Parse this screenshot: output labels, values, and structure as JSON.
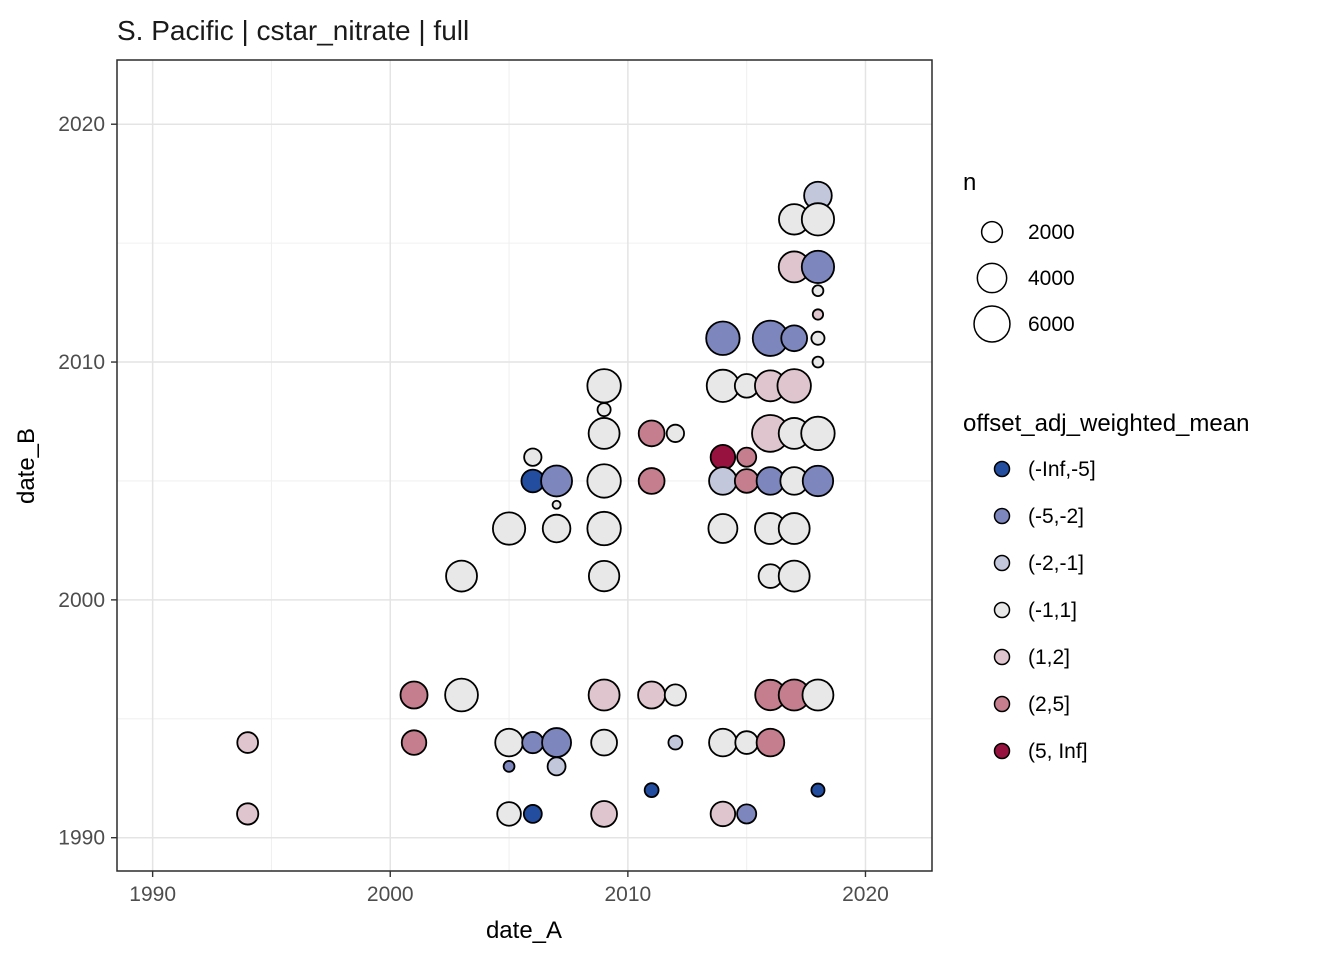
{
  "chart_data": {
    "type": "scatter",
    "title": "S. Pacific | cstar_nitrate | full",
    "xlabel": "date_A",
    "ylabel": "date_B",
    "xlim": [
      1988.5,
      2022.8
    ],
    "ylim": [
      1988.6,
      2022.7
    ],
    "x_ticks": [
      "1990",
      "2000",
      "2010",
      "2020"
    ],
    "y_ticks": [
      "1990",
      "2000",
      "2010",
      "2020"
    ],
    "x_tick_values": [
      1990,
      2000,
      2010,
      2020
    ],
    "y_tick_values": [
      1990,
      2000,
      2010,
      2020
    ],
    "x_minor": [
      1995,
      2005,
      2015
    ],
    "y_minor": [
      1995,
      2005,
      2015
    ],
    "grid": true,
    "panel_border_color": "#2b2b2b",
    "grid_major_color": "#e4e4e4",
    "grid_minor_color": "#f0f0f0",
    "point_stroke_color": "#000000",
    "size_legend": {
      "title": "n",
      "values": [
        2000,
        4000,
        6000
      ],
      "labels": [
        "2000",
        "4000",
        "6000"
      ]
    },
    "color_legend": {
      "title": "offset_adj_weighted_mean",
      "position": "right",
      "bins": [
        {
          "label": "(-Inf,-5]",
          "color": "#234EA0"
        },
        {
          "label": "(-5,-2]",
          "color": "#7D87BE"
        },
        {
          "label": "(-2,-1]",
          "color": "#C3C7DC"
        },
        {
          "label": "(-1,1]",
          "color": "#E8E8E8"
        },
        {
          "label": "(1,2]",
          "color": "#DFC5CE"
        },
        {
          "label": "(2,5]",
          "color": "#C47E8D"
        },
        {
          "label": "(5, Inf]",
          "color": "#97123E"
        }
      ]
    },
    "points": [
      {
        "x": 2018,
        "y": 2017,
        "n": 3550,
        "bin": "(-2,-1]"
      },
      {
        "x": 2017,
        "y": 2016,
        "n": 4300,
        "bin": "(-1,1]"
      },
      {
        "x": 2018,
        "y": 2016,
        "n": 4850,
        "bin": "(-1,1]"
      },
      {
        "x": 2017,
        "y": 2014,
        "n": 4450,
        "bin": "(1,2]"
      },
      {
        "x": 2018,
        "y": 2014,
        "n": 4850,
        "bin": "(-5,-2]"
      },
      {
        "x": 2018,
        "y": 2013,
        "n": 550,
        "bin": "(-1,1]"
      },
      {
        "x": 2018,
        "y": 2012,
        "n": 500,
        "bin": "(1,2]"
      },
      {
        "x": 2014,
        "y": 2011,
        "n": 5200,
        "bin": "(-5,-2]"
      },
      {
        "x": 2016,
        "y": 2011,
        "n": 5800,
        "bin": "(-5,-2]"
      },
      {
        "x": 2017,
        "y": 2011,
        "n": 3100,
        "bin": "(-5,-2]"
      },
      {
        "x": 2018,
        "y": 2011,
        "n": 800,
        "bin": "(-1,1]"
      },
      {
        "x": 2018,
        "y": 2010,
        "n": 550,
        "bin": "(-1,1]"
      },
      {
        "x": 2009,
        "y": 2009,
        "n": 5200,
        "bin": "(-1,1]"
      },
      {
        "x": 2014,
        "y": 2009,
        "n": 4850,
        "bin": "(-1,1]"
      },
      {
        "x": 2015,
        "y": 2009,
        "n": 2600,
        "bin": "(-1,1]"
      },
      {
        "x": 2016,
        "y": 2009,
        "n": 4450,
        "bin": "(1,2]"
      },
      {
        "x": 2017,
        "y": 2009,
        "n": 5200,
        "bin": "(1,2]"
      },
      {
        "x": 2009,
        "y": 2008,
        "n": 800,
        "bin": "(-1,1]"
      },
      {
        "x": 2009,
        "y": 2007,
        "n": 4450,
        "bin": "(-1,1]"
      },
      {
        "x": 2011,
        "y": 2007,
        "n": 3100,
        "bin": "(2,5]"
      },
      {
        "x": 2012,
        "y": 2007,
        "n": 1400,
        "bin": "(-1,1]"
      },
      {
        "x": 2016,
        "y": 2007,
        "n": 6300,
        "bin": "(1,2]"
      },
      {
        "x": 2017,
        "y": 2007,
        "n": 4450,
        "bin": "(-1,1]"
      },
      {
        "x": 2018,
        "y": 2007,
        "n": 5200,
        "bin": "(-1,1]"
      },
      {
        "x": 2014,
        "y": 2006,
        "n": 2800,
        "bin": "(5, Inf]"
      },
      {
        "x": 2015,
        "y": 2006,
        "n": 1700,
        "bin": "(2,5]"
      },
      {
        "x": 2006,
        "y": 2006,
        "n": 1400,
        "bin": "(-1,1]"
      },
      {
        "x": 2006,
        "y": 2005,
        "n": 2400,
        "bin": "(-Inf,-5]"
      },
      {
        "x": 2007,
        "y": 2005,
        "n": 4450,
        "bin": "(-5,-2]"
      },
      {
        "x": 2009,
        "y": 2005,
        "n": 5200,
        "bin": "(-1,1]"
      },
      {
        "x": 2011,
        "y": 2005,
        "n": 3100,
        "bin": "(2,5]"
      },
      {
        "x": 2014,
        "y": 2005,
        "n": 3550,
        "bin": "(-2,-1]"
      },
      {
        "x": 2015,
        "y": 2005,
        "n": 2600,
        "bin": "(2,5]"
      },
      {
        "x": 2016,
        "y": 2005,
        "n": 3550,
        "bin": "(-5,-2]"
      },
      {
        "x": 2017,
        "y": 2005,
        "n": 3550,
        "bin": "(-1,1]"
      },
      {
        "x": 2018,
        "y": 2005,
        "n": 4300,
        "bin": "(-5,-2]"
      },
      {
        "x": 2007,
        "y": 2004,
        "n": 300,
        "bin": "(-1,1]"
      },
      {
        "x": 2005,
        "y": 2003,
        "n": 4850,
        "bin": "(-1,1]"
      },
      {
        "x": 2007,
        "y": 2003,
        "n": 3550,
        "bin": "(-1,1]"
      },
      {
        "x": 2009,
        "y": 2003,
        "n": 5200,
        "bin": "(-1,1]"
      },
      {
        "x": 2014,
        "y": 2003,
        "n": 3900,
        "bin": "(-1,1]"
      },
      {
        "x": 2016,
        "y": 2003,
        "n": 4450,
        "bin": "(-1,1]"
      },
      {
        "x": 2017,
        "y": 2003,
        "n": 4450,
        "bin": "(-1,1]"
      },
      {
        "x": 2003,
        "y": 2001,
        "n": 4450,
        "bin": "(-1,1]"
      },
      {
        "x": 2009,
        "y": 2001,
        "n": 4300,
        "bin": "(-1,1]"
      },
      {
        "x": 2016,
        "y": 2001,
        "n": 2600,
        "bin": "(-1,1]"
      },
      {
        "x": 2017,
        "y": 2001,
        "n": 4450,
        "bin": "(-1,1]"
      },
      {
        "x": 2001,
        "y": 1996,
        "n": 3400,
        "bin": "(2,5]"
      },
      {
        "x": 2003,
        "y": 1996,
        "n": 5000,
        "bin": "(-1,1]"
      },
      {
        "x": 2009,
        "y": 1996,
        "n": 4450,
        "bin": "(1,2]"
      },
      {
        "x": 2011,
        "y": 1996,
        "n": 3400,
        "bin": "(1,2]"
      },
      {
        "x": 2012,
        "y": 1996,
        "n": 2100,
        "bin": "(-1,1]"
      },
      {
        "x": 2016,
        "y": 1996,
        "n": 4300,
        "bin": "(2,5]"
      },
      {
        "x": 2017,
        "y": 1996,
        "n": 4450,
        "bin": "(2,5]"
      },
      {
        "x": 2018,
        "y": 1996,
        "n": 4450,
        "bin": "(-1,1]"
      },
      {
        "x": 1994,
        "y": 1994,
        "n": 2000,
        "bin": "(1,2]"
      },
      {
        "x": 2001,
        "y": 1994,
        "n": 2800,
        "bin": "(2,5]"
      },
      {
        "x": 2005,
        "y": 1994,
        "n": 3550,
        "bin": "(-1,1]"
      },
      {
        "x": 2006,
        "y": 1994,
        "n": 2100,
        "bin": "(-5,-2]"
      },
      {
        "x": 2007,
        "y": 1994,
        "n": 3900,
        "bin": "(-5,-2]"
      },
      {
        "x": 2009,
        "y": 1994,
        "n": 3100,
        "bin": "(-1,1]"
      },
      {
        "x": 2012,
        "y": 1994,
        "n": 900,
        "bin": "(-2,-1]"
      },
      {
        "x": 2014,
        "y": 1994,
        "n": 3550,
        "bin": "(-1,1]"
      },
      {
        "x": 2015,
        "y": 1994,
        "n": 2400,
        "bin": "(-1,1]"
      },
      {
        "x": 2016,
        "y": 1994,
        "n": 3550,
        "bin": "(2,5]"
      },
      {
        "x": 2005,
        "y": 1993,
        "n": 550,
        "bin": "(-5,-2]"
      },
      {
        "x": 2007,
        "y": 1993,
        "n": 1500,
        "bin": "(-2,-1]"
      },
      {
        "x": 2011,
        "y": 1992,
        "n": 900,
        "bin": "(-Inf,-5]"
      },
      {
        "x": 2018,
        "y": 1992,
        "n": 800,
        "bin": "(-Inf,-5]"
      },
      {
        "x": 1994,
        "y": 1991,
        "n": 2100,
        "bin": "(1,2]"
      },
      {
        "x": 2005,
        "y": 1991,
        "n": 2600,
        "bin": "(-1,1]"
      },
      {
        "x": 2006,
        "y": 1991,
        "n": 1500,
        "bin": "(-Inf,-5]"
      },
      {
        "x": 2009,
        "y": 1991,
        "n": 3100,
        "bin": "(1,2]"
      },
      {
        "x": 2014,
        "y": 1991,
        "n": 2800,
        "bin": "(1,2]"
      },
      {
        "x": 2015,
        "y": 1991,
        "n": 1700,
        "bin": "(-5,-2]"
      }
    ]
  }
}
